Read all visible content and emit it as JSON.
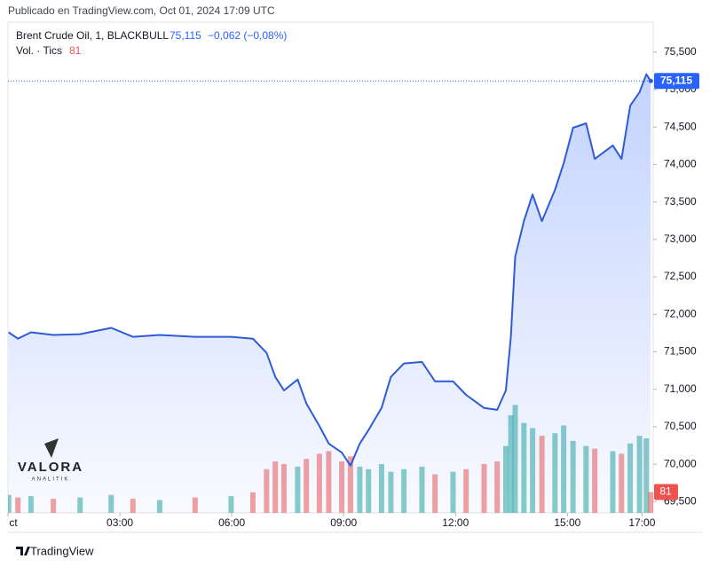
{
  "header": {
    "published": "Publicado en TradingView.com, Oct 01, 2024 17:09 UTC"
  },
  "chart_data": {
    "type": "area",
    "symbol": "Brent Crude Oil, 1, BLACKBULL",
    "change": "−0,062 (−0,08%)",
    "volume_label": "Vol. · Tics",
    "color": "#2f5bd6",
    "last_price": {
      "value": 75115,
      "label": "75,115"
    },
    "x": [
      "00:01",
      "00:16",
      "00:37",
      "01:13",
      "01:56",
      "02:46",
      "03:21",
      "04:04",
      "05:01",
      "05:59",
      "06:34",
      "06:56",
      "07:10",
      "07:24",
      "07:46",
      "08:00",
      "08:21",
      "08:36",
      "08:57",
      "09:11",
      "09:26",
      "09:40",
      "10:01",
      "10:16",
      "10:37",
      "11:06",
      "11:27",
      "11:56",
      "12:17",
      "12:46",
      "13:07",
      "13:21",
      "13:29",
      "13:36",
      "13:50",
      "14:04",
      "14:19",
      "14:40",
      "14:54",
      "15:09",
      "15:30",
      "15:44",
      "16:13",
      "16:27",
      "16:41",
      "16:56",
      "17:07",
      "17:14"
    ],
    "values": [
      71760,
      71675,
      71760,
      71725,
      71735,
      71820,
      71700,
      71725,
      71700,
      71700,
      71675,
      71485,
      71165,
      70985,
      71130,
      70810,
      70510,
      70275,
      70155,
      69980,
      70275,
      70455,
      70750,
      71165,
      71345,
      71365,
      71105,
      71105,
      70925,
      70750,
      70725,
      70985,
      71700,
      72770,
      73245,
      73600,
      73245,
      73660,
      74015,
      74490,
      74550,
      74075,
      74255,
      74075,
      74785,
      74965,
      75205,
      75115
    ],
    "volume": {
      "values": [
        70,
        60,
        65,
        55,
        60,
        70,
        55,
        50,
        60,
        65,
        80,
        170,
        200,
        190,
        180,
        210,
        230,
        240,
        200,
        220,
        180,
        170,
        190,
        160,
        170,
        180,
        150,
        160,
        170,
        190,
        200,
        260,
        380,
        420,
        350,
        330,
        300,
        310,
        340,
        280,
        260,
        250,
        240,
        230,
        270,
        300,
        290,
        81
      ],
      "up_color": "#26a69a",
      "down_color": "#ef5350"
    },
    "xlim": [
      "00:00",
      "17:18"
    ],
    "xticks": [
      {
        "value": "00:00",
        "label": "ct"
      },
      "03:00",
      "06:00",
      "09:00",
      "12:00",
      "15:00",
      "17:00"
    ],
    "ylim": [
      69350,
      75900
    ],
    "yticks": [
      {
        "value": 69500,
        "label": "69,500"
      },
      {
        "value": 70000,
        "label": "70,000"
      },
      {
        "value": 70500,
        "label": "70,500"
      },
      {
        "value": 71000,
        "label": "71,000"
      },
      {
        "value": 71500,
        "label": "71,500"
      },
      {
        "value": 72000,
        "label": "72,000"
      },
      {
        "value": 72500,
        "label": "72,500"
      },
      {
        "value": 73000,
        "label": "73,000"
      },
      {
        "value": 73500,
        "label": "73,500"
      },
      {
        "value": 74000,
        "label": "74,000"
      },
      {
        "value": 74500,
        "label": "74,500"
      },
      {
        "value": 75000,
        "label": "75,000"
      },
      {
        "value": 75500,
        "label": "75,500"
      }
    ],
    "grid": false,
    "watermark": {
      "brand": "VALORA",
      "tagline": "ANALITIK"
    }
  },
  "footer": {
    "brand": "TradingView"
  }
}
